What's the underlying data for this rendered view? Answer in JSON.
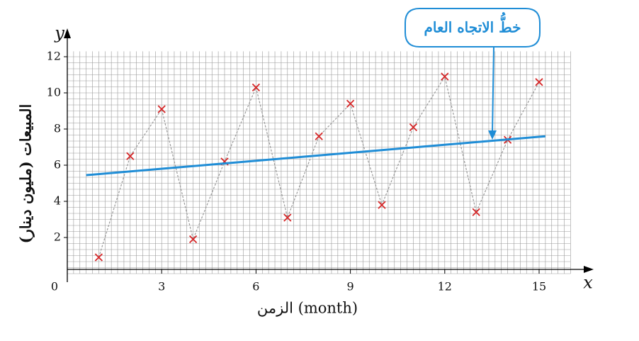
{
  "chart_data": {
    "type": "scatter",
    "x_label": "الزمن (month)",
    "y_label": "المبيعات (مليون دينار)",
    "x_axis_letter": "x",
    "y_axis_letter": "y",
    "annotation": "خطُّ الاتجاه العام",
    "xlim": [
      0,
      16
    ],
    "ylim": [
      0,
      12.3
    ],
    "xticks": [
      0,
      3,
      6,
      9,
      12,
      15
    ],
    "yticks": [
      2,
      4,
      6,
      8,
      10,
      12
    ],
    "grid": true,
    "series": [
      {
        "color": "#d62728",
        "mode": "points-dashed",
        "x": [
          1,
          2,
          3,
          4,
          5,
          6,
          7,
          8,
          9,
          10,
          11,
          12,
          13,
          14,
          15
        ],
        "values": [
          0.9,
          6.5,
          9.1,
          1.9,
          6.2,
          10.3,
          3.1,
          7.6,
          9.4,
          3.8,
          8.1,
          10.9,
          3.4,
          7.4,
          10.6
        ]
      },
      {
        "color": "#1f8dd6",
        "mode": "line",
        "x": [
          0.6,
          15.2
        ],
        "values": [
          5.45,
          7.6
        ]
      }
    ]
  }
}
